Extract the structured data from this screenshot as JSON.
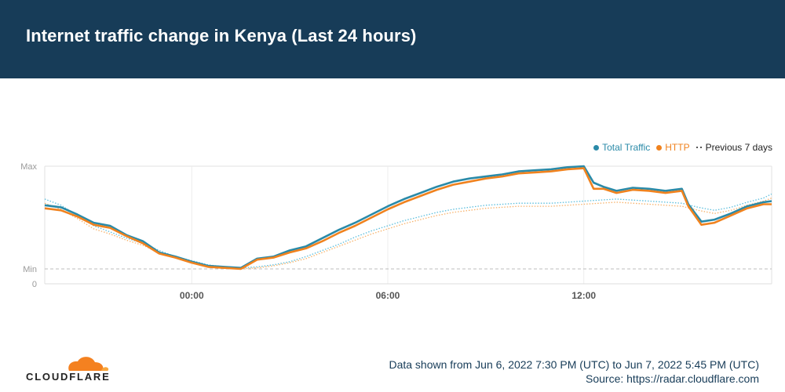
{
  "header": {
    "title": "Internet traffic change in Kenya (Last 24 hours)"
  },
  "legend": [
    {
      "label": "Total Traffic",
      "color": "#2a8aa8"
    },
    {
      "label": "HTTP",
      "color": "#f0821e"
    },
    {
      "label": "Previous 7 days",
      "color": "#333333"
    }
  ],
  "footer": {
    "range": "Data shown from Jun 6, 2022 7:30 PM (UTC) to Jun 7, 2022 5:45 PM (UTC)",
    "source": "Source: https://radar.cloudflare.com",
    "logo_text": "CLOUDFLARE"
  },
  "chart_data": {
    "type": "line",
    "x_ticks": [
      "00:00",
      "06:00",
      "12:00"
    ],
    "x_tick_hours": [
      24,
      30,
      36
    ],
    "x_range_hours": [
      19.5,
      41.75
    ],
    "y_ticks": [
      "Max",
      "Min",
      "0"
    ],
    "grid": true,
    "legend_position": "top-right",
    "series": [
      {
        "name": "Total Traffic",
        "color": "#2a8aa8",
        "style": "solid",
        "points": [
          [
            19.5,
            0.62
          ],
          [
            20,
            0.6
          ],
          [
            20.5,
            0.53
          ],
          [
            21,
            0.45
          ],
          [
            21.5,
            0.42
          ],
          [
            22,
            0.33
          ],
          [
            22.5,
            0.27
          ],
          [
            23,
            0.16
          ],
          [
            23.5,
            0.12
          ],
          [
            24,
            0.07
          ],
          [
            24.5,
            0.03
          ],
          [
            25,
            0.02
          ],
          [
            25.5,
            0.01
          ],
          [
            26,
            0.1
          ],
          [
            26.5,
            0.12
          ],
          [
            27,
            0.18
          ],
          [
            27.5,
            0.22
          ],
          [
            28,
            0.3
          ],
          [
            28.5,
            0.38
          ],
          [
            29,
            0.45
          ],
          [
            29.5,
            0.53
          ],
          [
            30,
            0.61
          ],
          [
            30.5,
            0.68
          ],
          [
            31,
            0.74
          ],
          [
            31.5,
            0.8
          ],
          [
            32,
            0.85
          ],
          [
            32.5,
            0.88
          ],
          [
            33,
            0.9
          ],
          [
            33.5,
            0.92
          ],
          [
            34,
            0.95
          ],
          [
            34.5,
            0.96
          ],
          [
            35,
            0.97
          ],
          [
            35.5,
            0.99
          ],
          [
            36,
            1.0
          ],
          [
            36.3,
            0.84
          ],
          [
            36.6,
            0.8
          ],
          [
            37,
            0.76
          ],
          [
            37.5,
            0.79
          ],
          [
            38,
            0.78
          ],
          [
            38.5,
            0.76
          ],
          [
            39,
            0.78
          ],
          [
            39.2,
            0.63
          ],
          [
            39.6,
            0.46
          ],
          [
            40,
            0.48
          ],
          [
            40.5,
            0.54
          ],
          [
            41,
            0.61
          ],
          [
            41.5,
            0.65
          ],
          [
            41.75,
            0.66
          ]
        ]
      },
      {
        "name": "HTTP",
        "color": "#f0821e",
        "style": "solid",
        "points": [
          [
            19.5,
            0.59
          ],
          [
            20,
            0.57
          ],
          [
            20.5,
            0.51
          ],
          [
            21,
            0.43
          ],
          [
            21.5,
            0.4
          ],
          [
            22,
            0.32
          ],
          [
            22.5,
            0.25
          ],
          [
            23,
            0.15
          ],
          [
            23.5,
            0.11
          ],
          [
            24,
            0.06
          ],
          [
            24.5,
            0.02
          ],
          [
            25,
            0.01
          ],
          [
            25.5,
            0.0
          ],
          [
            26,
            0.09
          ],
          [
            26.5,
            0.11
          ],
          [
            27,
            0.16
          ],
          [
            27.5,
            0.2
          ],
          [
            28,
            0.27
          ],
          [
            28.5,
            0.35
          ],
          [
            29,
            0.42
          ],
          [
            29.5,
            0.5
          ],
          [
            30,
            0.58
          ],
          [
            30.5,
            0.65
          ],
          [
            31,
            0.71
          ],
          [
            31.5,
            0.77
          ],
          [
            32,
            0.82
          ],
          [
            32.5,
            0.85
          ],
          [
            33,
            0.88
          ],
          [
            33.5,
            0.9
          ],
          [
            34,
            0.93
          ],
          [
            34.5,
            0.94
          ],
          [
            35,
            0.95
          ],
          [
            35.5,
            0.97
          ],
          [
            36,
            0.98
          ],
          [
            36.3,
            0.78
          ],
          [
            36.6,
            0.78
          ],
          [
            37,
            0.74
          ],
          [
            37.5,
            0.77
          ],
          [
            38,
            0.76
          ],
          [
            38.5,
            0.74
          ],
          [
            39,
            0.76
          ],
          [
            39.2,
            0.61
          ],
          [
            39.6,
            0.43
          ],
          [
            40,
            0.45
          ],
          [
            40.5,
            0.52
          ],
          [
            41,
            0.59
          ],
          [
            41.5,
            0.63
          ],
          [
            41.75,
            0.63
          ]
        ]
      },
      {
        "name": "Total Traffic (previous 7 days)",
        "color": "#5bbedd",
        "style": "dotted",
        "points": [
          [
            19.5,
            0.68
          ],
          [
            20,
            0.62
          ],
          [
            20.5,
            0.52
          ],
          [
            21,
            0.42
          ],
          [
            21.5,
            0.36
          ],
          [
            22,
            0.3
          ],
          [
            22.5,
            0.25
          ],
          [
            23,
            0.18
          ],
          [
            23.5,
            0.12
          ],
          [
            24,
            0.08
          ],
          [
            24.5,
            0.04
          ],
          [
            25,
            0.02
          ],
          [
            25.5,
            0.01
          ],
          [
            26,
            0.02
          ],
          [
            26.5,
            0.04
          ],
          [
            27,
            0.07
          ],
          [
            27.5,
            0.12
          ],
          [
            28,
            0.18
          ],
          [
            28.5,
            0.24
          ],
          [
            29,
            0.31
          ],
          [
            29.5,
            0.37
          ],
          [
            30,
            0.42
          ],
          [
            30.5,
            0.47
          ],
          [
            31,
            0.51
          ],
          [
            31.5,
            0.55
          ],
          [
            32,
            0.58
          ],
          [
            32.5,
            0.6
          ],
          [
            33,
            0.62
          ],
          [
            33.5,
            0.63
          ],
          [
            34,
            0.64
          ],
          [
            34.5,
            0.64
          ],
          [
            35,
            0.64
          ],
          [
            35.5,
            0.65
          ],
          [
            36,
            0.66
          ],
          [
            36.5,
            0.67
          ],
          [
            37,
            0.68
          ],
          [
            37.5,
            0.67
          ],
          [
            38,
            0.66
          ],
          [
            38.5,
            0.65
          ],
          [
            39,
            0.64
          ],
          [
            39.5,
            0.6
          ],
          [
            40,
            0.57
          ],
          [
            40.5,
            0.6
          ],
          [
            41,
            0.65
          ],
          [
            41.5,
            0.69
          ],
          [
            41.75,
            0.73
          ]
        ]
      },
      {
        "name": "HTTP (previous 7 days)",
        "color": "#f7b26b",
        "style": "dotted",
        "points": [
          [
            19.5,
            0.64
          ],
          [
            20,
            0.58
          ],
          [
            20.5,
            0.49
          ],
          [
            21,
            0.39
          ],
          [
            21.5,
            0.34
          ],
          [
            22,
            0.28
          ],
          [
            22.5,
            0.23
          ],
          [
            23,
            0.16
          ],
          [
            23.5,
            0.11
          ],
          [
            24,
            0.07
          ],
          [
            24.5,
            0.03
          ],
          [
            25,
            0.01
          ],
          [
            25.5,
            0.0
          ],
          [
            26,
            0.01
          ],
          [
            26.5,
            0.03
          ],
          [
            27,
            0.06
          ],
          [
            27.5,
            0.1
          ],
          [
            28,
            0.16
          ],
          [
            28.5,
            0.22
          ],
          [
            29,
            0.28
          ],
          [
            29.5,
            0.34
          ],
          [
            30,
            0.39
          ],
          [
            30.5,
            0.44
          ],
          [
            31,
            0.48
          ],
          [
            31.5,
            0.52
          ],
          [
            32,
            0.55
          ],
          [
            32.5,
            0.57
          ],
          [
            33,
            0.59
          ],
          [
            33.5,
            0.6
          ],
          [
            34,
            0.61
          ],
          [
            34.5,
            0.61
          ],
          [
            35,
            0.61
          ],
          [
            35.5,
            0.62
          ],
          [
            36,
            0.63
          ],
          [
            36.5,
            0.64
          ],
          [
            37,
            0.65
          ],
          [
            37.5,
            0.64
          ],
          [
            38,
            0.63
          ],
          [
            38.5,
            0.62
          ],
          [
            39,
            0.61
          ],
          [
            39.5,
            0.57
          ],
          [
            40,
            0.54
          ],
          [
            40.5,
            0.57
          ],
          [
            41,
            0.62
          ],
          [
            41.5,
            0.66
          ],
          [
            41.75,
            0.69
          ]
        ]
      }
    ]
  }
}
